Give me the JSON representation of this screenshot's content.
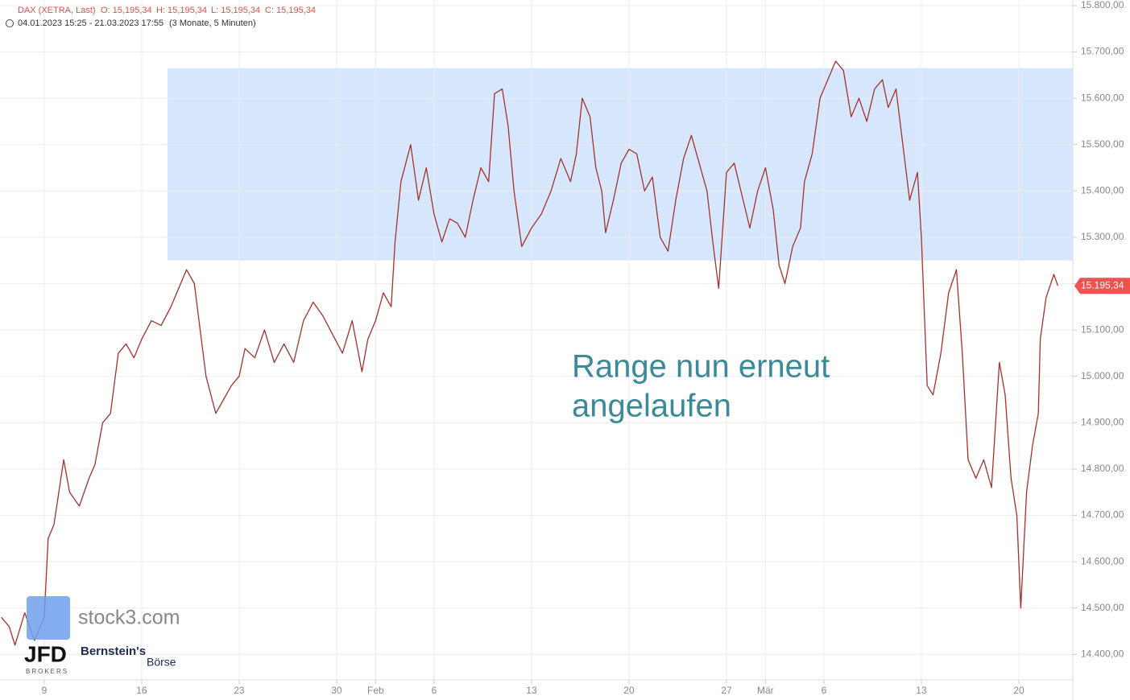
{
  "chart_data": {
    "type": "line",
    "header": {
      "symbol": "DAX (XETRA, Last)",
      "open": "O: 15,195,34",
      "high": "H: 15,195,34",
      "low": "L: 15,195,34",
      "close": "C: 15,195,34",
      "period": "04.01.2023 15:25 - 21.03.2023 17:55",
      "interval": "(3 Monate, 5 Minuten)"
    },
    "annotation": [
      "Range nun erneut",
      "angelaufen"
    ],
    "logos": {
      "stock3": "stock3.com",
      "jfd": "JFD",
      "jfd_sub": "BROKERS",
      "bernstein": "Bernstein's",
      "boerse": "Börse"
    },
    "range": {
      "low": 15250,
      "high": 15665,
      "start": 11.32
    },
    "range_color": "#d6e6fd",
    "last_price": {
      "value": 15195.34,
      "label": "15.195,34"
    },
    "xlim": [
      2.73,
      57.77
    ],
    "ylim": [
      14345,
      15812
    ],
    "grid": true,
    "xticks": [
      {
        "value": 5,
        "label": "9"
      },
      {
        "value": 10,
        "label": "16"
      },
      {
        "value": 15,
        "label": "23"
      },
      {
        "value": 20,
        "label": "30"
      },
      {
        "value": 22,
        "label": "Feb"
      },
      {
        "value": 25,
        "label": "6"
      },
      {
        "value": 30,
        "label": "13"
      },
      {
        "value": 35,
        "label": "20"
      },
      {
        "value": 40,
        "label": "27"
      },
      {
        "value": 42,
        "label": "Mär"
      },
      {
        "value": 45,
        "label": "6"
      },
      {
        "value": 50,
        "label": "13"
      },
      {
        "value": 55,
        "label": "20"
      }
    ],
    "yticks": [
      {
        "value": 14400,
        "label": "14.400,00"
      },
      {
        "value": 14500,
        "label": "14.500,00"
      },
      {
        "value": 14600,
        "label": "14.600,00"
      },
      {
        "value": 14700,
        "label": "14.700,00"
      },
      {
        "value": 14800,
        "label": "14.800,00"
      },
      {
        "value": 14900,
        "label": "14.900,00"
      },
      {
        "value": 15000,
        "label": "15.000,00"
      },
      {
        "value": 15100,
        "label": "15.100,00"
      },
      {
        "value": 15200,
        "label": "15.200,00"
      },
      {
        "value": 15300,
        "label": "15.300,00"
      },
      {
        "value": 15400,
        "label": "15.400,00"
      },
      {
        "value": 15500,
        "label": "15.500,00"
      },
      {
        "value": 15600,
        "label": "15.600,00"
      },
      {
        "value": 15700,
        "label": "15.700,00"
      },
      {
        "value": 15800,
        "label": "15.800,00"
      }
    ],
    "series": [
      {
        "name": "DAX",
        "color": "#a3322c",
        "x": [
          2.8,
          3.2,
          3.5,
          4.0,
          4.5,
          5.0,
          5.2,
          5.5,
          6.0,
          6.3,
          6.8,
          7.3,
          7.6,
          8.0,
          8.4,
          8.8,
          9.2,
          9.6,
          10.0,
          10.5,
          11.0,
          11.5,
          12.0,
          12.3,
          12.7,
          13.0,
          13.3,
          13.8,
          14.2,
          14.6,
          15.0,
          15.3,
          15.8,
          16.3,
          16.8,
          17.3,
          17.8,
          18.3,
          18.8,
          19.3,
          19.8,
          20.3,
          20.8,
          21.3,
          21.6,
          22.0,
          22.4,
          22.8,
          23.0,
          23.3,
          23.8,
          24.2,
          24.6,
          25.0,
          25.4,
          25.8,
          26.2,
          26.6,
          27.0,
          27.4,
          27.8,
          28.1,
          28.5,
          28.8,
          29.1,
          29.5,
          30.0,
          30.5,
          31.0,
          31.5,
          32.0,
          32.3,
          32.6,
          33.0,
          33.3,
          33.6,
          33.8,
          34.2,
          34.6,
          35.0,
          35.4,
          35.8,
          36.2,
          36.6,
          37.0,
          37.4,
          37.8,
          38.2,
          38.6,
          39.0,
          39.3,
          39.6,
          40.0,
          40.4,
          40.8,
          41.2,
          41.6,
          42.0,
          42.4,
          42.7,
          43.0,
          43.4,
          43.8,
          44.0,
          44.4,
          44.8,
          45.2,
          45.6,
          46.0,
          46.4,
          46.8,
          47.2,
          47.6,
          48.0,
          48.3,
          48.7,
          49.4,
          49.8,
          50.0,
          50.3,
          50.6,
          51.0,
          51.4,
          51.8,
          52.1,
          52.4,
          52.8,
          53.2,
          53.6,
          54.0,
          54.3,
          54.6,
          54.9,
          55.1,
          55.4,
          55.7,
          56.0,
          56.1,
          56.4,
          56.8,
          57.0
        ],
        "values": [
          14480,
          14460,
          14420,
          14490,
          14430,
          14480,
          14650,
          14680,
          14820,
          14750,
          14720,
          14780,
          14810,
          14900,
          14920,
          15050,
          15070,
          15040,
          15080,
          15120,
          15110,
          15150,
          15200,
          15230,
          15200,
          15100,
          15000,
          14920,
          14950,
          14980,
          15000,
          15060,
          15040,
          15100,
          15030,
          15070,
          15030,
          15120,
          15160,
          15130,
          15090,
          15050,
          15120,
          15010,
          15080,
          15120,
          15180,
          15150,
          15290,
          15420,
          15500,
          15380,
          15450,
          15350,
          15290,
          15340,
          15330,
          15300,
          15380,
          15450,
          15420,
          15610,
          15620,
          15540,
          15400,
          15280,
          15320,
          15350,
          15400,
          15470,
          15420,
          15480,
          15600,
          15560,
          15450,
          15400,
          15310,
          15380,
          15460,
          15490,
          15480,
          15400,
          15430,
          15300,
          15270,
          15380,
          15470,
          15520,
          15460,
          15400,
          15290,
          15190,
          15440,
          15460,
          15390,
          15320,
          15400,
          15450,
          15360,
          15240,
          15200,
          15280,
          15320,
          15420,
          15480,
          15600,
          15640,
          15680,
          15660,
          15560,
          15600,
          15550,
          15620,
          15640,
          15580,
          15620,
          15380,
          15440,
          15300,
          14980,
          14960,
          15050,
          15180,
          15230,
          15050,
          14820,
          14780,
          14820,
          14760,
          15030,
          14960,
          14780,
          14700,
          14500,
          14750,
          14850,
          14920,
          15080,
          15170,
          15220,
          15195.34
        ]
      }
    ]
  }
}
